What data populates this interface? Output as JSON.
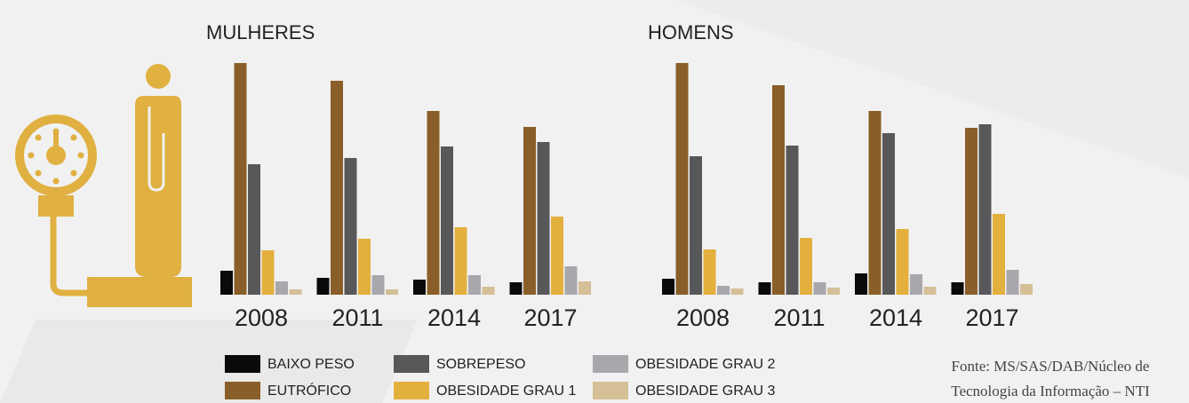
{
  "chart_data": [
    {
      "type": "bar",
      "title": "MULHERES",
      "categories": [
        "2008",
        "2011",
        "2014",
        "2017"
      ],
      "series": [
        {
          "name": "BAIXO PESO",
          "color": "#0a0a0a",
          "values": [
            27,
            19,
            17,
            14
          ]
        },
        {
          "name": "EUTRÓFICO",
          "color": "#8a5e28",
          "values": [
            261,
            241,
            207,
            189
          ]
        },
        {
          "name": "SOBREPESO",
          "color": "#58585a",
          "values": [
            147,
            154,
            167,
            172
          ]
        },
        {
          "name": "OBESIDADE GRAU 1",
          "color": "#e3b03e",
          "values": [
            50,
            63,
            76,
            88
          ]
        },
        {
          "name": "OBESIDADE GRAU 2",
          "color": "#a8a7ab",
          "values": [
            15,
            22,
            22,
            32
          ]
        },
        {
          "name": "OBESIDADE GRAU 3",
          "color": "#d5bf96",
          "values": [
            6,
            6,
            9,
            15
          ]
        }
      ]
    },
    {
      "type": "bar",
      "title": "HOMENS",
      "categories": [
        "2008",
        "2011",
        "2014",
        "2017"
      ],
      "series": [
        {
          "name": "BAIXO PESO",
          "color": "#0a0a0a",
          "values": [
            18,
            14,
            24,
            14
          ]
        },
        {
          "name": "EUTRÓFICO",
          "color": "#8a5e28",
          "values": [
            261,
            236,
            207,
            188
          ]
        },
        {
          "name": "SOBREPESO",
          "color": "#58585a",
          "values": [
            156,
            168,
            182,
            192
          ]
        },
        {
          "name": "OBESIDADE GRAU 1",
          "color": "#e3b03e",
          "values": [
            51,
            64,
            74,
            91
          ]
        },
        {
          "name": "OBESIDADE GRAU 2",
          "color": "#a8a7ab",
          "values": [
            10,
            14,
            23,
            28
          ]
        },
        {
          "name": "OBESIDADE GRAU 3",
          "color": "#d5bf96",
          "values": [
            7,
            8,
            9,
            12
          ]
        }
      ]
    }
  ],
  "source": [
    "Fonte: MS/SAS/DAB/Núcleo de",
    "Tecnologia da Informação – NTI"
  ]
}
